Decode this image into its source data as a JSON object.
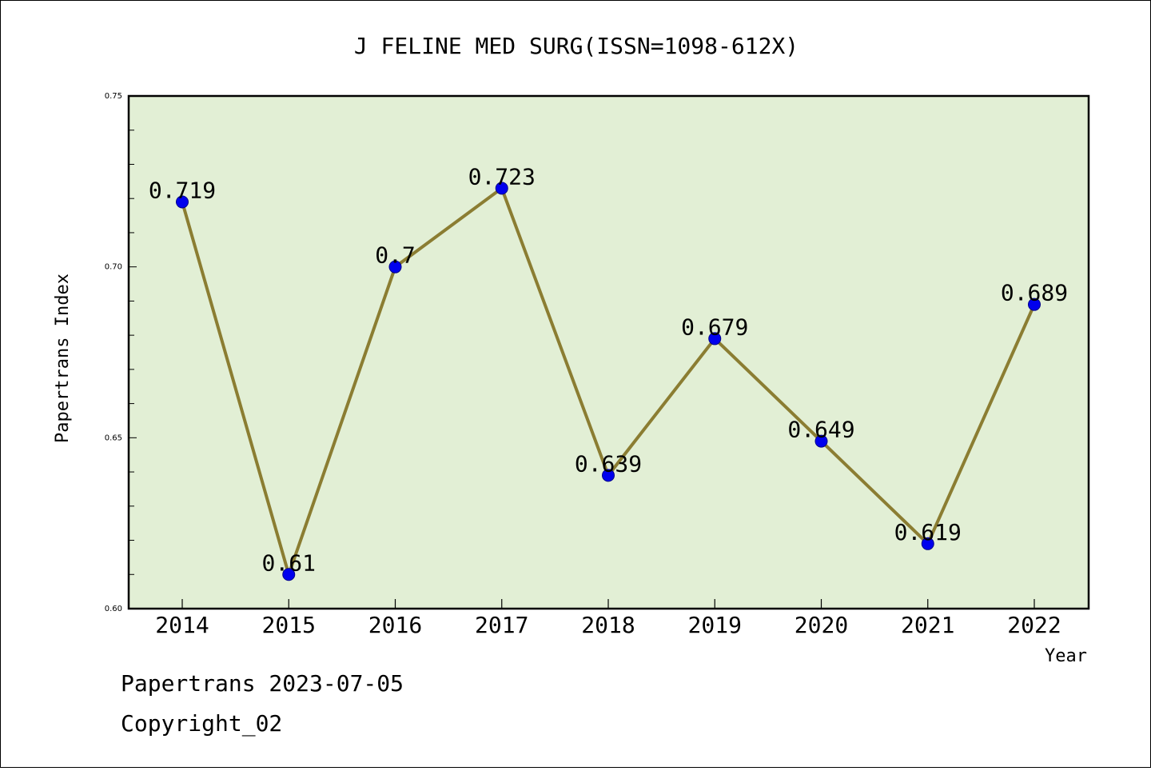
{
  "chart_data": {
    "type": "line",
    "title": "J FELINE MED SURG(ISSN=1098-612X)",
    "xlabel": "Year",
    "ylabel": "Papertrans Index",
    "categories": [
      "2014",
      "2015",
      "2016",
      "2017",
      "2018",
      "2019",
      "2020",
      "2021",
      "2022"
    ],
    "values": [
      0.719,
      0.61,
      0.7,
      0.723,
      0.639,
      0.679,
      0.649,
      0.619,
      0.689
    ],
    "data_labels": [
      "0.719",
      "0.61",
      "0.7",
      "0.723",
      "0.639",
      "0.679",
      "0.649",
      "0.619",
      "0.689"
    ],
    "ylim": [
      0.6,
      0.75
    ],
    "yticks": [
      "0.60",
      "0.65",
      "0.70",
      "0.75"
    ],
    "grid": false,
    "colors": {
      "plot_background": "#e2efd5",
      "line": "#8b7d32",
      "marker": "#0000ee",
      "marker_edge": "#00008b"
    }
  },
  "footer": {
    "line1": "Papertrans 2023-07-05",
    "line2": "Copyright_02"
  }
}
